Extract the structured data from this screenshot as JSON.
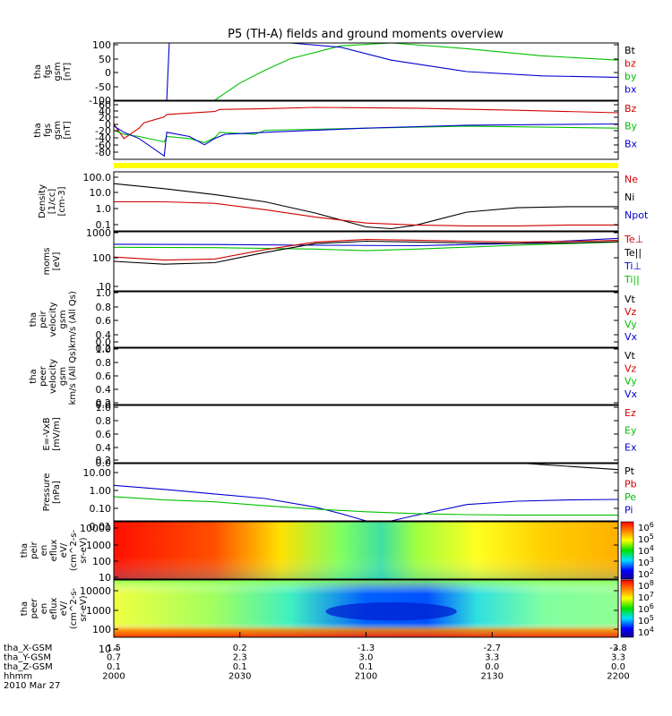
{
  "title": "P5 (TH-A) fields and ground moments overview",
  "colors": {
    "black": "#000000",
    "red": "#d00000",
    "green": "#00c000",
    "blue": "#0000d0",
    "yellow": "#ffff00"
  },
  "chart_data": [
    {
      "type": "line",
      "ylabel_lines": [
        "tha",
        "fgs",
        "gsm",
        "[nT]"
      ],
      "yticks": [
        "100",
        "50",
        "0",
        "-50",
        "-100"
      ],
      "legend": [
        {
          "name": "Bt",
          "color": "#000000"
        },
        {
          "name": "bz",
          "color": "#d00000"
        },
        {
          "name": "by",
          "color": "#00c000"
        },
        {
          "name": "bx",
          "color": "#0000d0"
        }
      ],
      "ylim": [
        -100,
        100
      ],
      "series": [
        {
          "name": "by",
          "color": "#00c000",
          "x": [
            0.2,
            0.25,
            0.3,
            0.35,
            0.45,
            0.55,
            0.7,
            0.85,
            1.0
          ],
          "y": [
            -100,
            -40,
            5,
            45,
            90,
            100,
            80,
            55,
            40
          ]
        },
        {
          "name": "bx",
          "color": "#0000d0",
          "x": [
            0.0,
            0.105,
            0.11,
            0.2,
            0.35,
            0.45,
            0.55,
            0.7,
            0.85,
            1.0
          ],
          "y": [
            -100,
            -100,
            100,
            100,
            100,
            85,
            40,
            0,
            -15,
            -20
          ]
        }
      ]
    },
    {
      "type": "line",
      "ylabel_lines": [
        "tha",
        "fgs",
        "gsm",
        "[nT]"
      ],
      "yticks": [
        "60",
        "40",
        "20",
        "0",
        "-20",
        "-40",
        "-60",
        "-80"
      ],
      "legend": [
        {
          "name": "Bz",
          "color": "#d00000"
        },
        {
          "name": "By",
          "color": "#00c000"
        },
        {
          "name": "Bx",
          "color": "#0000d0"
        }
      ],
      "ylim": [
        -80,
        60
      ],
      "series": [
        {
          "name": "Bz",
          "color": "#d00000",
          "x": [
            0,
            0.02,
            0.05,
            0.06,
            0.1,
            0.105,
            0.2,
            0.21,
            0.3,
            0.4,
            0.6,
            0.8,
            1.0
          ],
          "y": [
            5,
            -30,
            -5,
            8,
            22,
            28,
            35,
            40,
            42,
            45,
            43,
            38,
            32
          ]
        },
        {
          "name": "By",
          "color": "#00c000",
          "x": [
            0,
            0.02,
            0.05,
            0.1,
            0.105,
            0.15,
            0.18,
            0.2,
            0.21,
            0.28,
            0.3,
            0.5,
            0.7,
            1.0
          ],
          "y": [
            -10,
            -20,
            -25,
            -38,
            -25,
            -30,
            -40,
            -28,
            -15,
            -20,
            -10,
            -5,
            0,
            -5
          ]
        },
        {
          "name": "Bx",
          "color": "#0000d0",
          "x": [
            0,
            0.02,
            0.05,
            0.1,
            0.105,
            0.15,
            0.18,
            0.2,
            0.22,
            0.3,
            0.5,
            0.7,
            1.0
          ],
          "y": [
            0,
            -15,
            -30,
            -72,
            -15,
            -25,
            -45,
            -30,
            -20,
            -15,
            -5,
            2,
            5
          ]
        }
      ]
    },
    {
      "type": "line",
      "scale": "log",
      "ylabel_lines": [
        "Density",
        "[1/cc]",
        "[cm-3]"
      ],
      "yticks": [
        "100.0",
        "10.0",
        "1.0",
        "0.1"
      ],
      "legend": [
        {
          "name": "Ne",
          "color": "#d00000"
        },
        {
          "name": "Ni",
          "color": "#000000"
        },
        {
          "name": "Npot",
          "color": "#0000d0"
        }
      ],
      "ylim": [
        0.1,
        100
      ],
      "series": [
        {
          "name": "Ni",
          "color": "#000000",
          "x": [
            0,
            0.1,
            0.2,
            0.3,
            0.4,
            0.5,
            0.55,
            0.6,
            0.7,
            0.8,
            0.9,
            1.0
          ],
          "y": [
            25,
            14,
            7,
            3,
            0.8,
            0.16,
            0.13,
            0.2,
            0.9,
            1.5,
            1.7,
            1.7
          ]
        },
        {
          "name": "Ne",
          "color": "#d00000",
          "x": [
            0,
            0.1,
            0.2,
            0.3,
            0.4,
            0.5,
            0.6,
            0.7,
            0.8,
            0.9,
            1.0
          ],
          "y": [
            3,
            3,
            2.5,
            1.2,
            0.5,
            0.25,
            0.2,
            0.18,
            0.18,
            0.2,
            0.2
          ]
        }
      ]
    },
    {
      "type": "line",
      "scale": "log",
      "ylabel_lines": [
        "moms",
        "[eV]"
      ],
      "yticks": [
        "1000",
        "100",
        "10"
      ],
      "legend": [
        {
          "name": "Te⊥",
          "color": "#d00000"
        },
        {
          "name": "Te||",
          "color": "#000000"
        },
        {
          "name": "Ti⊥",
          "color": "#0000d0"
        },
        {
          "name": "Ti||",
          "color": "#00c000"
        }
      ],
      "ylim": [
        10,
        1000
      ],
      "series": [
        {
          "name": "Ti⊥",
          "color": "#0000d0",
          "x": [
            0,
            0.2,
            0.4,
            0.6,
            0.8,
            1.0
          ],
          "y": [
            380,
            370,
            350,
            340,
            400,
            600
          ]
        },
        {
          "name": "Ti||",
          "color": "#00c000",
          "x": [
            0,
            0.2,
            0.4,
            0.5,
            0.6,
            0.8,
            1.0
          ],
          "y": [
            300,
            290,
            260,
            230,
            260,
            350,
            450
          ]
        },
        {
          "name": "Te⊥",
          "color": "#d00000",
          "x": [
            0,
            0.1,
            0.2,
            0.3,
            0.4,
            0.5,
            0.6,
            0.7,
            0.8,
            0.9,
            1.0
          ],
          "y": [
            140,
            110,
            120,
            250,
            450,
            550,
            520,
            480,
            450,
            470,
            520
          ]
        },
        {
          "name": "Te||",
          "color": "#000000",
          "x": [
            0,
            0.1,
            0.2,
            0.3,
            0.4,
            0.5,
            0.6,
            0.7,
            0.8,
            0.9,
            1.0
          ],
          "y": [
            100,
            80,
            90,
            200,
            400,
            480,
            450,
            420,
            400,
            420,
            460
          ]
        }
      ]
    },
    {
      "type": "line",
      "ylabel_lines": [
        "tha",
        "peir",
        "velocity",
        "gsm",
        "km/s (All Qs)"
      ],
      "yticks": [
        "1.0",
        "0.8",
        "0.6",
        "0.4",
        "0.2",
        "0.0"
      ],
      "legend": [
        {
          "name": "Vt",
          "color": "#000000"
        },
        {
          "name": "Vz",
          "color": "#d00000"
        },
        {
          "name": "Vy",
          "color": "#00c000"
        },
        {
          "name": "Vx",
          "color": "#0000d0"
        }
      ],
      "ylim": [
        0,
        1
      ],
      "series": []
    },
    {
      "type": "line",
      "ylabel_lines": [
        "tha",
        "peer",
        "velocity",
        "gsm",
        "km/s (All Qs)"
      ],
      "yticks": [
        "1.0",
        "0.8",
        "0.6",
        "0.4",
        "0.2",
        "0.0"
      ],
      "legend": [
        {
          "name": "Vt",
          "color": "#000000"
        },
        {
          "name": "Vz",
          "color": "#d00000"
        },
        {
          "name": "Vy",
          "color": "#00c000"
        },
        {
          "name": "Vx",
          "color": "#0000d0"
        }
      ],
      "ylim": [
        0,
        1
      ],
      "series": []
    },
    {
      "type": "line",
      "ylabel_lines": [
        "E=-VxB",
        "[mV/m]"
      ],
      "yticks": [
        "1.0",
        "0.8",
        "0.6",
        "0.4",
        "0.2",
        "0.0"
      ],
      "legend": [
        {
          "name": "Ez",
          "color": "#d00000"
        },
        {
          "name": "Ey",
          "color": "#00c000"
        },
        {
          "name": "Ex",
          "color": "#0000d0"
        }
      ],
      "ylim": [
        0,
        1
      ],
      "series": []
    },
    {
      "type": "line",
      "scale": "log",
      "ylabel_lines": [
        "Pressure",
        "[nPa]"
      ],
      "yticks": [
        "10.00",
        "1.00",
        "0.10",
        "0.01"
      ],
      "legend": [
        {
          "name": "Pt",
          "color": "#000000"
        },
        {
          "name": "Pb",
          "color": "#d00000"
        },
        {
          "name": "Pe",
          "color": "#00c000"
        },
        {
          "name": "Pi",
          "color": "#0000d0"
        }
      ],
      "ylim": [
        0.005,
        30
      ],
      "series": [
        {
          "name": "Pt",
          "color": "#000000",
          "x": [
            0.82,
            0.9,
            1.0
          ],
          "y": [
            30,
            20,
            12
          ]
        },
        {
          "name": "Pi",
          "color": "#0000d0",
          "x": [
            0,
            0.1,
            0.2,
            0.3,
            0.4,
            0.45,
            0.5,
            0.55,
            0.6,
            0.7,
            0.8,
            0.9,
            1.0
          ],
          "y": [
            1.1,
            0.6,
            0.3,
            0.15,
            0.04,
            0.015,
            0.005,
            0.005,
            0.012,
            0.06,
            0.1,
            0.12,
            0.13
          ]
        },
        {
          "name": "Pe",
          "color": "#00c000",
          "x": [
            0,
            0.1,
            0.2,
            0.3,
            0.4,
            0.5,
            0.6,
            0.7,
            0.8,
            0.9,
            1.0
          ],
          "y": [
            0.2,
            0.12,
            0.09,
            0.05,
            0.03,
            0.02,
            0.015,
            0.013,
            0.012,
            0.012,
            0.012
          ]
        }
      ]
    },
    {
      "type": "heatmap",
      "ylabel_lines": [
        "tha",
        "peir",
        "en",
        "eflux",
        "eV/",
        "(cm^2-s-",
        "sr-eV)"
      ],
      "yticks": [
        "10000",
        "1000",
        "100",
        "10"
      ],
      "colorbar_ticks": [
        "10^6",
        "10^5",
        "10^4",
        "10^3",
        "10^2"
      ]
    },
    {
      "type": "heatmap",
      "ylabel_lines": [
        "tha",
        "peer",
        "en",
        "eflux",
        "eV/",
        "(cm^2-s-",
        "sr-eV)"
      ],
      "yticks": [
        "10000",
        "1000",
        "100",
        "10"
      ],
      "colorbar_ticks": [
        "10^8",
        "10^7",
        "10^6",
        "10^5",
        "10^4"
      ]
    }
  ],
  "xaxis": {
    "labels": [
      "tha_X-GSM",
      "tha_Y-GSM",
      "tha_Z-GSM",
      "hhmm",
      "2010 Mar 27"
    ],
    "rows": [
      [
        "1.5",
        "0.2",
        "-1.3",
        "-2.7",
        "-3.8"
      ],
      [
        "0.7",
        "2.3",
        "3.0",
        "3.3",
        "3.3"
      ],
      [
        "0.1",
        "0.1",
        "0.1",
        "0.0",
        "0.0"
      ],
      [
        "2000",
        "2030",
        "2100",
        "2130",
        "2200"
      ]
    ]
  }
}
